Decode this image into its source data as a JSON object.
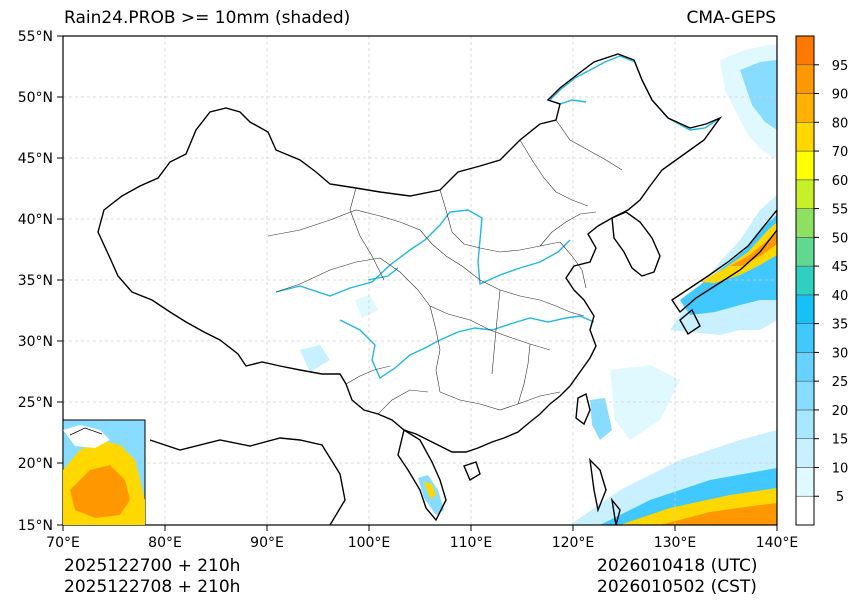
{
  "header": {
    "title": "Rain24.PROB >= 10mm (shaded)",
    "model": "CMA-GEPS"
  },
  "axes": {
    "lat_labels": [
      "55°N",
      "50°N",
      "45°N",
      "40°N",
      "35°N",
      "30°N",
      "25°N",
      "20°N",
      "15°N"
    ],
    "lon_labels": [
      "70°E",
      "80°E",
      "90°E",
      "100°E",
      "110°E",
      "120°E",
      "130°E",
      "140°E"
    ]
  },
  "colorbar": {
    "labels": [
      "5",
      "10",
      "15",
      "20",
      "25",
      "30",
      "35",
      "40",
      "45",
      "50",
      "55",
      "60",
      "70",
      "80",
      "90",
      "95"
    ],
    "colors": [
      "#ffffff",
      "#e0f8ff",
      "#c8f0ff",
      "#a8e8ff",
      "#88dcff",
      "#66d2ff",
      "#40c8ff",
      "#18c0f8",
      "#30d0c0",
      "#60d890",
      "#8ee060",
      "#c8f028",
      "#ffff00",
      "#ffd800",
      "#ffb000",
      "#ff9800",
      "#ff7800"
    ]
  },
  "footer": {
    "init_utc": "2025122700 + 210h",
    "init_cst": "2025122708 + 210h",
    "valid_utc": "2026010418 (UTC)",
    "valid_cst": "2026010502 (CST)"
  }
}
